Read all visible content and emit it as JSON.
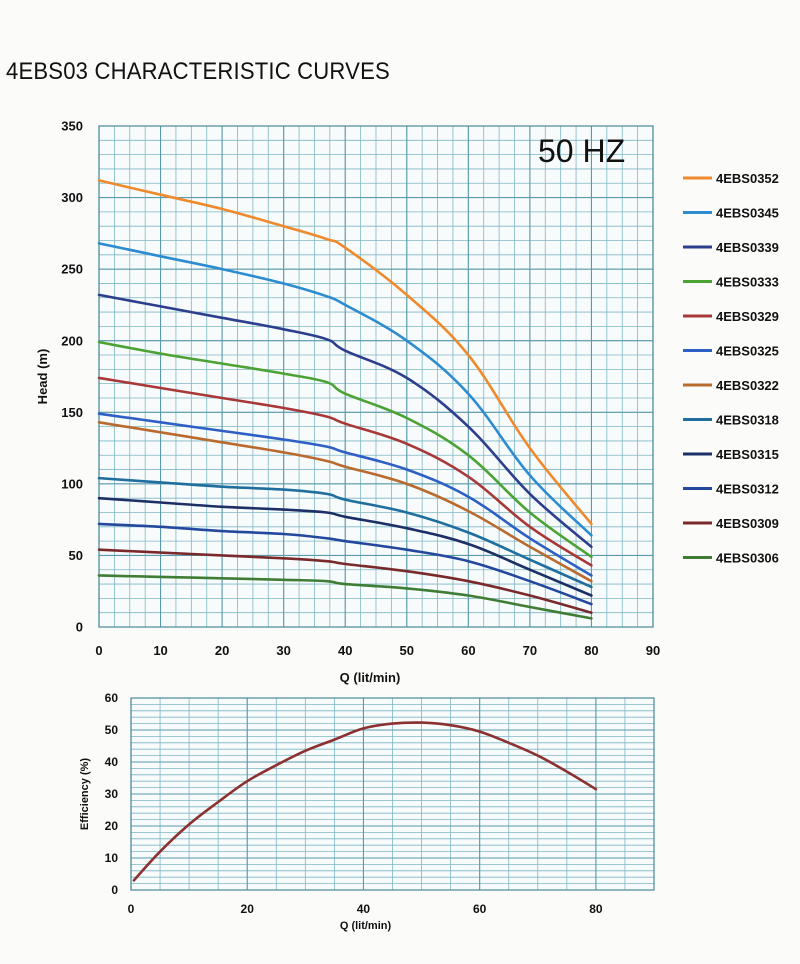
{
  "title": "4EBS03 CHARACTERISTIC CURVES",
  "chart_data": [
    {
      "type": "line",
      "title": "4EBS03 CHARACTERISTIC CURVES",
      "annotation": "50 HZ",
      "xlabel": "Q (lit/min)",
      "ylabel": "Head (m)",
      "xlim": [
        0,
        90
      ],
      "ylim": [
        0,
        350
      ],
      "xticks": [
        0,
        10,
        20,
        30,
        40,
        50,
        60,
        70,
        80,
        90
      ],
      "yticks": [
        0,
        50,
        100,
        150,
        200,
        250,
        300,
        350
      ],
      "grid": true,
      "legend": "right",
      "x": [
        0,
        10,
        20,
        30,
        37,
        40,
        50,
        60,
        70,
        80
      ],
      "series": [
        {
          "name": "4EBS0352",
          "color": "#ef8a2c",
          "values": [
            312,
            302,
            292,
            280,
            271,
            265,
            232,
            190,
            125,
            72
          ]
        },
        {
          "name": "4EBS0345",
          "color": "#2d8ccf",
          "values": [
            268,
            259,
            250,
            240,
            231,
            225,
            200,
            163,
            106,
            64
          ]
        },
        {
          "name": "4EBS0339",
          "color": "#2c3e8c",
          "values": [
            232,
            224,
            216,
            208,
            201,
            193,
            174,
            140,
            93,
            56
          ]
        },
        {
          "name": "4EBS0333",
          "color": "#4ca334",
          "values": [
            199,
            191,
            184,
            177,
            171,
            163,
            146,
            120,
            80,
            49
          ]
        },
        {
          "name": "4EBS0329",
          "color": "#a83838",
          "values": [
            174,
            167,
            160,
            153,
            147,
            142,
            128,
            105,
            70,
            43
          ]
        },
        {
          "name": "4EBS0325",
          "color": "#2d5fc4",
          "values": [
            149,
            143,
            137,
            131,
            126,
            122,
            110,
            91,
            62,
            36
          ]
        },
        {
          "name": "4EBS0322",
          "color": "#b96a2e",
          "values": [
            143,
            136,
            129,
            122,
            116,
            112,
            100,
            81,
            56,
            32
          ]
        },
        {
          "name": "4EBS0318",
          "color": "#1f6e9e",
          "values": [
            104,
            101,
            98,
            96,
            93,
            89,
            80,
            66,
            47,
            28
          ]
        },
        {
          "name": "4EBS0315",
          "color": "#1c2f66",
          "values": [
            90,
            87,
            84,
            82,
            80,
            77,
            69,
            58,
            40,
            22
          ]
        },
        {
          "name": "4EBS0312",
          "color": "#24489e",
          "values": [
            72,
            70,
            67,
            65,
            62,
            60,
            54,
            46,
            32,
            16
          ]
        },
        {
          "name": "4EBS0309",
          "color": "#7a2a2a",
          "values": [
            54,
            52,
            50,
            48,
            46,
            44,
            39,
            32,
            22,
            10
          ]
        },
        {
          "name": "4EBS0306",
          "color": "#3f7d35",
          "values": [
            36,
            35,
            34,
            33,
            32,
            30,
            27,
            22,
            14,
            6
          ]
        }
      ]
    },
    {
      "type": "line",
      "xlabel": "Q (lit/min)",
      "ylabel": "Efficiency (%)",
      "xlim": [
        0,
        90
      ],
      "ylim": [
        0,
        60
      ],
      "xticks": [
        0,
        20,
        40,
        60,
        80
      ],
      "yticks": [
        0,
        10,
        20,
        30,
        40,
        50,
        60
      ],
      "grid": true,
      "series": [
        {
          "name": "Efficiency",
          "color": "#8c3030",
          "x": [
            0.5,
            5,
            10,
            15,
            20,
            25,
            30,
            35,
            40,
            45,
            50,
            55,
            60,
            65,
            70,
            75,
            80
          ],
          "values": [
            3,
            12,
            20.5,
            27.5,
            34,
            39,
            43.5,
            47,
            50.5,
            52,
            52.3,
            51.5,
            49.5,
            46,
            42,
            37,
            31.5
          ]
        }
      ]
    }
  ]
}
